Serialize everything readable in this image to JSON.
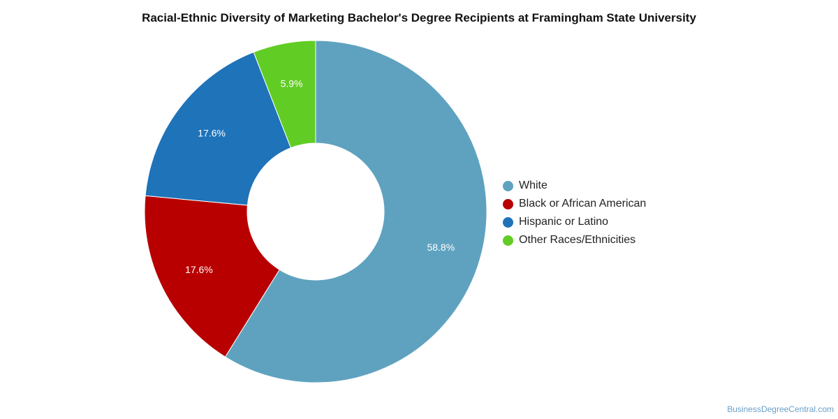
{
  "chart_data": {
    "type": "pie",
    "variant": "donut",
    "title": "Racial-Ethnic Diversity of Marketing Bachelor's Degree Recipients at Framingham State University",
    "slices": [
      {
        "label": "White",
        "value": 58.8,
        "display": "58.8%",
        "color": "#5fa2bf"
      },
      {
        "label": "Black or African American",
        "value": 17.6,
        "display": "17.6%",
        "color": "#b80000"
      },
      {
        "label": "Hispanic or Latino",
        "value": 17.6,
        "display": "17.6%",
        "color": "#1f73b9"
      },
      {
        "label": "Other Races/Ethnicities",
        "value": 5.9,
        "display": "5.9%",
        "color": "#61cd24"
      }
    ],
    "start": "12 o'clock",
    "direction": "clockwise",
    "legend_position": "right"
  },
  "watermark": "BusinessDegreeCentral.com"
}
